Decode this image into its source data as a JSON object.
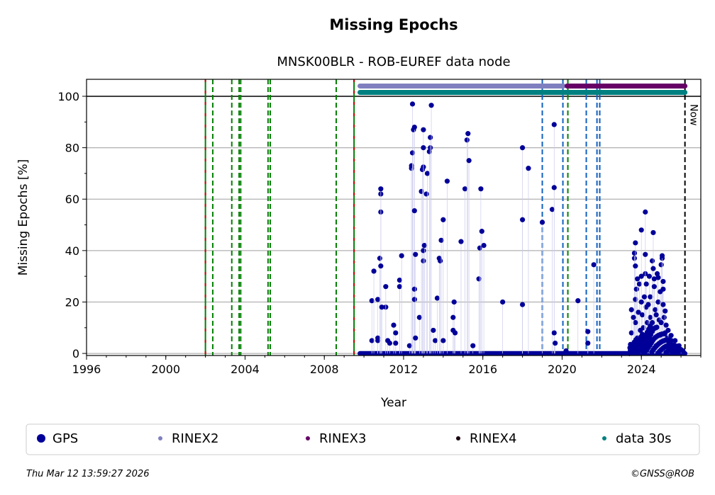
{
  "chart_data": {
    "type": "scatter",
    "title": "Missing Epochs",
    "subtitle": "MNSK00BLR - ROB-EUREF data node",
    "xlabel": "Year",
    "ylabel": "Missing Epochs [%]",
    "xlim": [
      1996,
      2027
    ],
    "ylim": [
      -0.8,
      106.6
    ],
    "xticks": [
      1996,
      2000,
      2004,
      2008,
      2012,
      2016,
      2020,
      2024
    ],
    "yticks": [
      0,
      20,
      40,
      60,
      80,
      100
    ],
    "grid": true,
    "now_label": "Now",
    "now_year": 2026.2,
    "vlines": [
      {
        "year": 2002.0,
        "color": "#cc0000",
        "color2": "#008000"
      },
      {
        "year": 2002.37,
        "color": "#008000"
      },
      {
        "year": 2003.33,
        "color": "#008000"
      },
      {
        "year": 2003.7,
        "color": "#008000"
      },
      {
        "year": 2003.78,
        "color": "#008000"
      },
      {
        "year": 2005.16,
        "color": "#008000"
      },
      {
        "year": 2005.27,
        "color": "#008000"
      },
      {
        "year": 2008.6,
        "color": "#008000"
      },
      {
        "year": 2009.5,
        "color": "#cc0000",
        "color2": "#008000"
      },
      {
        "year": 2019.0,
        "color": "#1060c0"
      },
      {
        "year": 2020.04,
        "color": "#1060c0"
      },
      {
        "year": 2020.29,
        "color": "#008000"
      },
      {
        "year": 2021.22,
        "color": "#1060c0"
      },
      {
        "year": 2021.76,
        "color": "#1060c0"
      },
      {
        "year": 2021.9,
        "color": "#1060c0"
      }
    ],
    "availability_bars": [
      {
        "name": "RINEX2",
        "start": 2009.8,
        "end": 2020.07,
        "level": 104,
        "color": "#7f7fbf"
      },
      {
        "name": "RINEX3",
        "start": 2020.25,
        "end": 2026.2,
        "level": 104,
        "color": "#660066"
      },
      {
        "name": "data 30s",
        "start": 2009.8,
        "end": 2026.2,
        "level": 101.5,
        "color": "#008080"
      }
    ],
    "zero_runs": [
      {
        "start": 2009.8,
        "end": 2026.2,
        "value": 0
      }
    ],
    "series": [
      {
        "name": "GPS",
        "color": "#000099",
        "points": [
          [
            2010.4,
            20.5
          ],
          [
            2010.4,
            5
          ],
          [
            2010.5,
            32
          ],
          [
            2010.7,
            21
          ],
          [
            2010.7,
            6
          ],
          [
            2010.7,
            5
          ],
          [
            2010.8,
            37
          ],
          [
            2010.85,
            55
          ],
          [
            2010.85,
            62
          ],
          [
            2010.85,
            64
          ],
          [
            2010.85,
            34
          ],
          [
            2010.9,
            18
          ],
          [
            2011.1,
            18
          ],
          [
            2011.1,
            26
          ],
          [
            2011.2,
            5
          ],
          [
            2011.3,
            4
          ],
          [
            2011.5,
            11
          ],
          [
            2011.6,
            8
          ],
          [
            2011.6,
            4
          ],
          [
            2011.8,
            28.5
          ],
          [
            2011.8,
            26
          ],
          [
            2011.9,
            38
          ],
          [
            2012.3,
            3
          ],
          [
            2012.4,
            72
          ],
          [
            2012.4,
            73
          ],
          [
            2012.45,
            97
          ],
          [
            2012.45,
            78
          ],
          [
            2012.5,
            87
          ],
          [
            2012.55,
            88
          ],
          [
            2012.55,
            55.5
          ],
          [
            2012.55,
            25
          ],
          [
            2012.55,
            21
          ],
          [
            2012.6,
            38.5
          ],
          [
            2012.6,
            6
          ],
          [
            2012.8,
            14
          ],
          [
            2012.9,
            63
          ],
          [
            2012.95,
            71.5
          ],
          [
            2013.0,
            72.5
          ],
          [
            2013.0,
            87
          ],
          [
            2013.0,
            80
          ],
          [
            2013.0,
            36
          ],
          [
            2013.0,
            40
          ],
          [
            2013.05,
            42
          ],
          [
            2013.15,
            62
          ],
          [
            2013.2,
            70
          ],
          [
            2013.3,
            78.5
          ],
          [
            2013.35,
            80
          ],
          [
            2013.35,
            84
          ],
          [
            2013.4,
            96.5
          ],
          [
            2013.5,
            9
          ],
          [
            2013.6,
            5
          ],
          [
            2013.7,
            21.5
          ],
          [
            2013.8,
            37
          ],
          [
            2013.85,
            36
          ],
          [
            2013.9,
            44
          ],
          [
            2014.0,
            52
          ],
          [
            2014.0,
            5
          ],
          [
            2014.2,
            67
          ],
          [
            2014.55,
            20
          ],
          [
            2014.5,
            14
          ],
          [
            2014.5,
            9
          ],
          [
            2014.6,
            8
          ],
          [
            2014.9,
            43.5
          ],
          [
            2015.1,
            64
          ],
          [
            2015.2,
            83
          ],
          [
            2015.25,
            85.5
          ],
          [
            2015.3,
            75
          ],
          [
            2015.5,
            3
          ],
          [
            2015.8,
            29
          ],
          [
            2015.85,
            41
          ],
          [
            2015.9,
            64
          ],
          [
            2015.95,
            47.5
          ],
          [
            2016.05,
            42
          ],
          [
            2017.0,
            20
          ],
          [
            2018.0,
            80
          ],
          [
            2018.0,
            52
          ],
          [
            2018.0,
            19
          ],
          [
            2018.3,
            72
          ],
          [
            2019.0,
            51
          ],
          [
            2019.5,
            56
          ],
          [
            2019.6,
            89
          ],
          [
            2019.6,
            64.5
          ],
          [
            2019.6,
            8
          ],
          [
            2019.65,
            4
          ],
          [
            2020.2,
            1
          ],
          [
            2020.8,
            20.5
          ],
          [
            2021.3,
            8.5
          ],
          [
            2021.3,
            4
          ],
          [
            2021.6,
            34.5
          ],
          [
            2023.45,
            3.5
          ],
          [
            2023.5,
            17
          ],
          [
            2023.5,
            8
          ],
          [
            2023.65,
            37
          ],
          [
            2023.65,
            39
          ],
          [
            2023.7,
            43
          ],
          [
            2023.7,
            34
          ],
          [
            2023.7,
            21
          ],
          [
            2023.75,
            25
          ],
          [
            2023.8,
            29
          ],
          [
            2023.7,
            12
          ],
          [
            2023.8,
            6
          ],
          [
            2023.9,
            27
          ],
          [
            2024.0,
            48
          ],
          [
            2024.0,
            30
          ],
          [
            2024.0,
            20
          ],
          [
            2024.05,
            15
          ],
          [
            2024.1,
            10
          ],
          [
            2024.1,
            4
          ],
          [
            2024.2,
            55
          ],
          [
            2024.2,
            31
          ],
          [
            2024.2,
            38.5
          ],
          [
            2024.25,
            27
          ],
          [
            2024.25,
            18
          ],
          [
            2024.3,
            12
          ],
          [
            2024.3,
            6
          ],
          [
            2024.4,
            30
          ],
          [
            2024.45,
            22
          ],
          [
            2024.45,
            14
          ],
          [
            2024.5,
            8
          ],
          [
            2024.55,
            36
          ],
          [
            2024.6,
            47
          ],
          [
            2024.6,
            33
          ],
          [
            2024.65,
            29
          ],
          [
            2024.65,
            26
          ],
          [
            2024.7,
            17
          ],
          [
            2024.7,
            10
          ],
          [
            2024.75,
            3
          ],
          [
            2024.8,
            31
          ],
          [
            2024.85,
            29.5
          ],
          [
            2024.85,
            20
          ],
          [
            2024.9,
            13
          ],
          [
            2024.95,
            7
          ],
          [
            2025.0,
            34.5
          ],
          [
            2025.05,
            37
          ],
          [
            2025.05,
            38
          ],
          [
            2025.1,
            28
          ],
          [
            2025.1,
            25
          ],
          [
            2025.1,
            19
          ],
          [
            2025.15,
            14
          ],
          [
            2025.2,
            16.5
          ],
          [
            2025.25,
            11
          ],
          [
            2025.3,
            6
          ],
          [
            2025.35,
            9
          ],
          [
            2025.4,
            4
          ],
          [
            2025.5,
            7
          ],
          [
            2025.6,
            3
          ],
          [
            2025.7,
            5
          ],
          [
            2025.8,
            2
          ],
          [
            2025.9,
            3
          ],
          [
            2026.0,
            1.5
          ],
          [
            2026.1,
            1
          ],
          [
            2023.6,
            14
          ],
          [
            2023.85,
            16
          ],
          [
            2023.95,
            9
          ],
          [
            2024.15,
            22
          ],
          [
            2024.35,
            19
          ],
          [
            2024.4,
            5
          ],
          [
            2024.55,
            12
          ],
          [
            2024.75,
            15
          ],
          [
            2024.95,
            24
          ],
          [
            2025.0,
            12
          ],
          [
            2025.2,
            8
          ],
          [
            2025.45,
            2
          ],
          [
            2025.55,
            1
          ]
        ]
      }
    ],
    "legend": {
      "placement": "bottom",
      "entries": [
        {
          "label": "GPS",
          "color": "#000099"
        },
        {
          "label": "RINEX2",
          "color": "#7f7fbf"
        },
        {
          "label": "RINEX3",
          "color": "#660066"
        },
        {
          "label": "RINEX4",
          "color": "#1a0010"
        },
        {
          "label": "data 30s",
          "color": "#008080"
        }
      ]
    }
  },
  "footer": {
    "timestamp": "Thu Mar 12 13:59:27 2026",
    "credit": "©GNSS@ROB"
  }
}
